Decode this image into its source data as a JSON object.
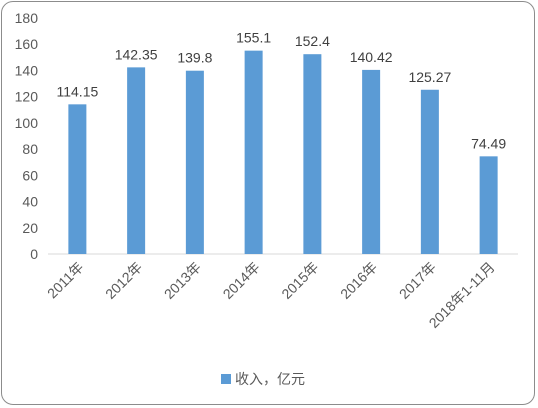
{
  "chart_data": {
    "type": "bar",
    "categories": [
      "2011年",
      "2012年",
      "2013年",
      "2014年",
      "2015年",
      "2016年",
      "2017年",
      "2018年1-11月"
    ],
    "series": [
      {
        "name": "收入，亿元",
        "values": [
          114.15,
          142.35,
          139.8,
          155.1,
          152.4,
          140.42,
          125.27,
          74.49
        ]
      }
    ],
    "data_labels": [
      "114.15",
      "142.35",
      "139.8",
      "155.1",
      "152.4",
      "140.42",
      "125.27",
      "74.49"
    ],
    "y_ticks": [
      "0",
      "20",
      "40",
      "60",
      "80",
      "100",
      "120",
      "140",
      "160",
      "180"
    ],
    "ylim": [
      0,
      180
    ],
    "grid": false,
    "legend_position": "bottom",
    "bar_color": "#5b9bd5",
    "title": "",
    "xlabel": "",
    "ylabel": ""
  }
}
